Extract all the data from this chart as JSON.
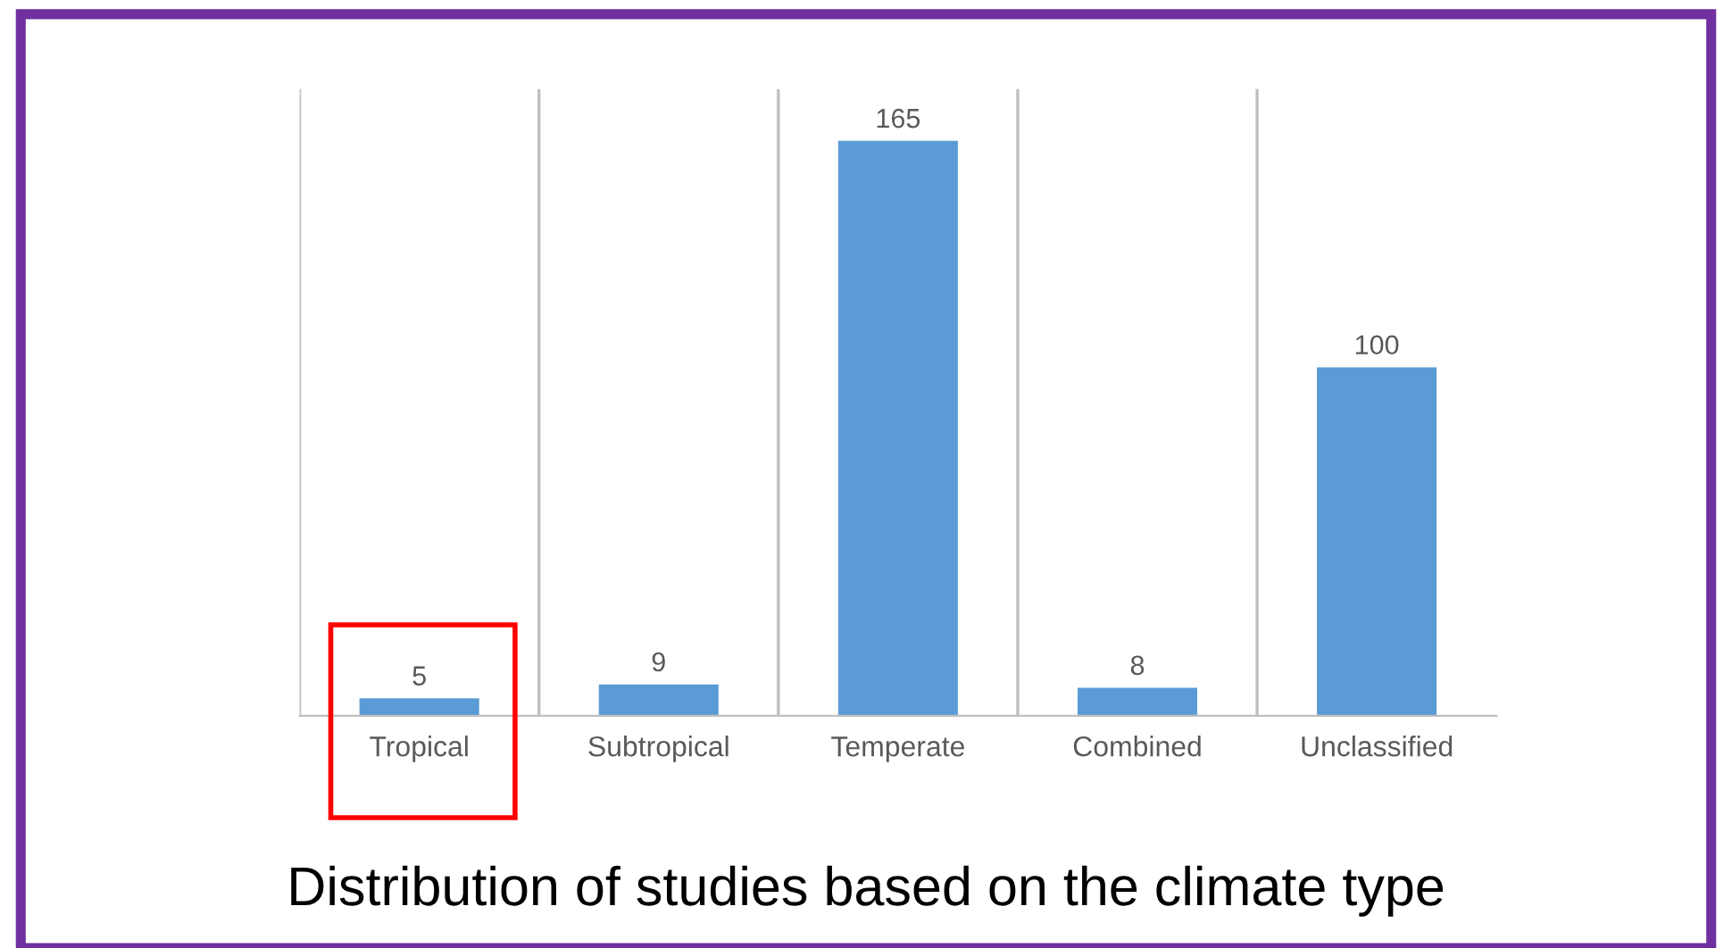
{
  "chart_data": {
    "type": "bar",
    "title": "Distribution of studies based on the climate type",
    "categories": [
      "Tropical",
      "Subtropical",
      "Temperate",
      "Combined",
      "Unclassified"
    ],
    "values": [
      5,
      9,
      165,
      8,
      100
    ],
    "color": "#5b9bd5",
    "data_labels": true,
    "grid": "x",
    "legend": false,
    "tick_labels": "x"
  }
}
